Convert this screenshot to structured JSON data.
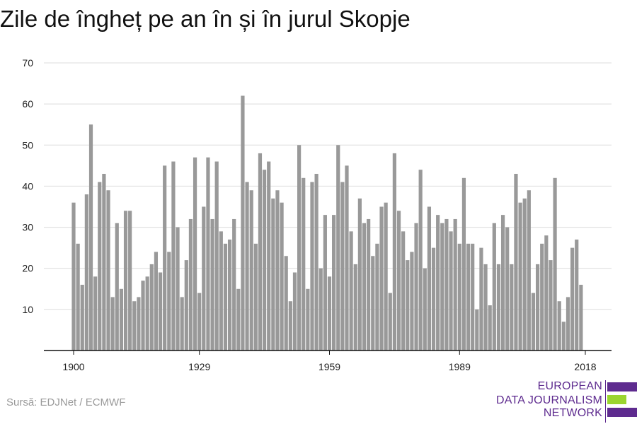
{
  "chart_data": {
    "type": "bar",
    "title": "Zile de îngheț pe an în și în jurul Skopje",
    "x": [
      1900,
      1901,
      1902,
      1903,
      1904,
      1905,
      1906,
      1907,
      1908,
      1909,
      1910,
      1911,
      1912,
      1913,
      1914,
      1915,
      1916,
      1917,
      1918,
      1919,
      1920,
      1921,
      1922,
      1923,
      1924,
      1925,
      1926,
      1927,
      1928,
      1929,
      1930,
      1931,
      1932,
      1933,
      1934,
      1935,
      1936,
      1937,
      1938,
      1939,
      1940,
      1941,
      1942,
      1943,
      1944,
      1945,
      1946,
      1947,
      1948,
      1949,
      1950,
      1951,
      1952,
      1953,
      1954,
      1955,
      1956,
      1957,
      1958,
      1959,
      1960,
      1961,
      1962,
      1963,
      1964,
      1965,
      1966,
      1967,
      1968,
      1969,
      1970,
      1971,
      1972,
      1973,
      1974,
      1975,
      1976,
      1977,
      1978,
      1979,
      1980,
      1981,
      1982,
      1983,
      1984,
      1985,
      1986,
      1987,
      1988,
      1989,
      1990,
      1991,
      1992,
      1993,
      1994,
      1995,
      1996,
      1997,
      1998,
      1999,
      2000,
      2001,
      2002,
      2003,
      2004,
      2005,
      2006,
      2007,
      2008,
      2009,
      2010,
      2011,
      2012,
      2013,
      2014,
      2015,
      2016,
      2017,
      2018
    ],
    "values": [
      36,
      26,
      16,
      38,
      55,
      18,
      41,
      43,
      39,
      13,
      31,
      15,
      34,
      34,
      12,
      13,
      17,
      18,
      21,
      24,
      19,
      45,
      24,
      46,
      30,
      13,
      22,
      32,
      47,
      14,
      35,
      47,
      32,
      46,
      29,
      26,
      27,
      32,
      15,
      62,
      41,
      39,
      26,
      48,
      44,
      46,
      37,
      39,
      36,
      23,
      12,
      19,
      50,
      42,
      15,
      41,
      43,
      20,
      33,
      18,
      33,
      50,
      41,
      45,
      29,
      21,
      37,
      31,
      32,
      23,
      26,
      35,
      36,
      14,
      48,
      34,
      29,
      22,
      24,
      31,
      44,
      20,
      35,
      25,
      33,
      31,
      32,
      29,
      32,
      26,
      42,
      26,
      26,
      10,
      25,
      21,
      11,
      31,
      21,
      33,
      30,
      21,
      43,
      36,
      37,
      39,
      14,
      21,
      26,
      28,
      22,
      42,
      12,
      7,
      13,
      25,
      27,
      16,
      null
    ],
    "xticks": [
      "1900",
      "1929",
      "1959",
      "1989",
      "2018"
    ],
    "yticks": [
      "10",
      "20",
      "30",
      "40",
      "50",
      "60",
      "70"
    ],
    "ylim": [
      0,
      70
    ],
    "xlabel": "",
    "ylabel": "",
    "grid": true,
    "bar_color": "#999999"
  },
  "footer": {
    "source": "Sursă: EDJNet / ECMWF"
  },
  "logo": {
    "lines": [
      "EUROPEAN",
      "DATA JOURNALISM",
      "NETWORK"
    ],
    "colors": {
      "purple": "#5e2b8f",
      "green": "#9bd52f"
    }
  }
}
